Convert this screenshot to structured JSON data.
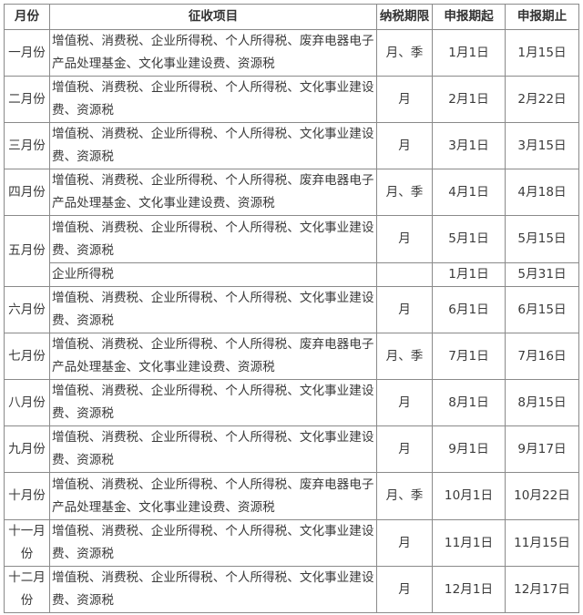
{
  "headers": {
    "month": "月份",
    "items": "征收项目",
    "period": "纳税期限",
    "start": "申报期起",
    "end": "申报期止"
  },
  "rows": [
    {
      "month": "一月份",
      "items": "增值税、消费税、企业所得税、个人所得税、废弃电器电子产品处理基金、文化事业建设费、资源税",
      "period": "月、季",
      "start": "1月1日",
      "end": "1月15日"
    },
    {
      "month": "二月份",
      "items": "增值税、消费税、企业所得税、个人所得税、文化事业建设费、资源税",
      "period": "月",
      "start": "2月1日",
      "end": "2月22日"
    },
    {
      "month": "三月份",
      "items": "增值税、消费税、企业所得税、个人所得税、文化事业建设费、资源税",
      "period": "月",
      "start": "3月1日",
      "end": "3月15日"
    },
    {
      "month": "四月份",
      "items": "增值税、消费税、企业所得税、个人所得税、废弃电器电子产品处理基金、文化事业建设费、资源税",
      "period": "月、季",
      "start": "4月1日",
      "end": "4月18日"
    },
    {
      "month": "五月份",
      "items": "增值税、消费税、企业所得税、个人所得税、文化事业建设费、资源税",
      "period": "月",
      "start": "5月1日",
      "end": "5月15日",
      "extra": {
        "items": "企业所得税",
        "period": "",
        "start": "1月1日",
        "end": "5月31日"
      }
    },
    {
      "month": "六月份",
      "items": "增值税、消费税、企业所得税、个人所得税、文化事业建设费、资源税",
      "period": "月",
      "start": "6月1日",
      "end": "6月15日"
    },
    {
      "month": "七月份",
      "items": "增值税、消费税、企业所得税、个人所得税、废弃电器电子产品处理基金、文化事业建设费、资源税",
      "period": "月、季",
      "start": "7月1日",
      "end": "7月16日"
    },
    {
      "month": "八月份",
      "items": "增值税、消费税、企业所得税、个人所得税、文化事业建设费、资源税",
      "period": "月",
      "start": "8月1日",
      "end": "8月15日"
    },
    {
      "month": "九月份",
      "items": "增值税、消费税、企业所得税、个人所得税、文化事业建设费、资源税",
      "period": "月",
      "start": "9月1日",
      "end": "9月17日"
    },
    {
      "month": "十月份",
      "items": "增值税、消费税、企业所得税、个人所得税、废弃电器电子产品处理基金、文化事业建设费、资源税",
      "period": "月、季",
      "start": "10月1日",
      "end": "10月22日"
    },
    {
      "month": "十一月份",
      "items": "增值税、消费税、企业所得税、个人所得税、文化事业建设费、资源税",
      "period": "月",
      "start": "11月1日",
      "end": "11月15日"
    },
    {
      "month": "十二月份",
      "items": "增值税、消费税、企业所得税、个人所得税、文化事业建设费、资源税",
      "period": "月",
      "start": "12月1日",
      "end": "12月17日"
    }
  ]
}
